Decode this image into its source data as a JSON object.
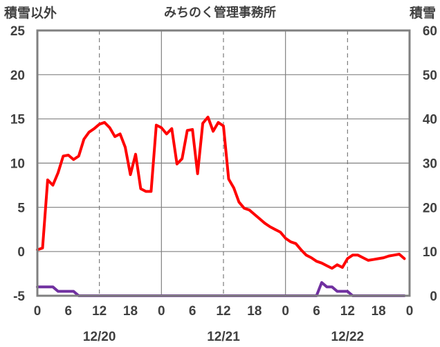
{
  "chart_data": {
    "type": "line",
    "title": "みちのく管理事務所",
    "y_left_label": "積雪以外",
    "y_right_label": "積雪",
    "x_ticks": [
      "0",
      "6",
      "12",
      "18",
      "0",
      "6",
      "12",
      "18",
      "0",
      "6",
      "12",
      "18",
      "0"
    ],
    "date_labels": [
      "12/20",
      "12/21",
      "12/22"
    ],
    "x_range_hours": [
      0,
      72
    ],
    "y_left_lim": [
      -5,
      25
    ],
    "y_left_ticks": [
      -5,
      0,
      5,
      10,
      15,
      20,
      25
    ],
    "y_right_lim": [
      0,
      60
    ],
    "y_right_ticks": [
      0,
      10,
      20,
      30,
      40,
      50,
      60
    ],
    "grid": true,
    "series": [
      {
        "axis": "left",
        "color": "#ff0000",
        "x": [
          0,
          1,
          2,
          3,
          4,
          5,
          6,
          7,
          8,
          9,
          10,
          11,
          12,
          13,
          14,
          15,
          16,
          17,
          18,
          19,
          20,
          21,
          22,
          23,
          24,
          25,
          26,
          27,
          28,
          29,
          30,
          31,
          32,
          33,
          34,
          35,
          36,
          37,
          38,
          39,
          40,
          41,
          42,
          43,
          44,
          45,
          46,
          47,
          48,
          49,
          50,
          51,
          52,
          53,
          54,
          55,
          56,
          57,
          58,
          59,
          60,
          61,
          62,
          63,
          64,
          65,
          66,
          67,
          68,
          69,
          70,
          71
        ],
        "values": [
          0.2,
          0.4,
          8.1,
          7.5,
          8.9,
          10.8,
          10.9,
          10.4,
          10.8,
          12.7,
          13.5,
          13.9,
          14.4,
          14.6,
          14.0,
          13.0,
          13.3,
          11.8,
          8.7,
          11.0,
          7.1,
          6.8,
          6.8,
          14.3,
          14.0,
          13.3,
          13.9,
          9.9,
          10.5,
          13.7,
          13.8,
          8.8,
          14.5,
          15.2,
          13.6,
          14.6,
          14.2,
          8.2,
          7.2,
          5.6,
          4.9,
          4.7,
          4.2,
          3.7,
          3.2,
          2.8,
          2.5,
          2.2,
          1.5,
          1.1,
          0.9,
          0.2,
          -0.4,
          -0.7,
          -1.1,
          -1.3,
          -1.6,
          -1.9,
          -1.5,
          -1.8,
          -0.8,
          -0.4,
          -0.4,
          -0.7,
          -1.0,
          -0.9,
          -0.8,
          -0.7,
          -0.5,
          -0.4,
          -0.3,
          -0.8
        ]
      },
      {
        "axis": "right",
        "color": "#7030a0",
        "x": [
          0,
          1,
          2,
          3,
          4,
          5,
          6,
          7,
          8,
          9,
          42,
          43,
          44,
          45,
          46,
          47,
          48,
          49,
          50,
          51,
          52,
          53,
          54,
          55,
          56,
          57,
          58,
          59,
          60,
          61,
          62,
          63,
          64,
          65,
          66,
          67,
          68,
          69,
          70,
          71
        ],
        "values": [
          2,
          2,
          2,
          2,
          1,
          1,
          1,
          1,
          0,
          0,
          0,
          0,
          0,
          0,
          0,
          0,
          0,
          0,
          0,
          0,
          0,
          0,
          0,
          3,
          2,
          2,
          1,
          1,
          1,
          0,
          0,
          0,
          0,
          0,
          0,
          0,
          0,
          0,
          0,
          0
        ]
      }
    ]
  }
}
